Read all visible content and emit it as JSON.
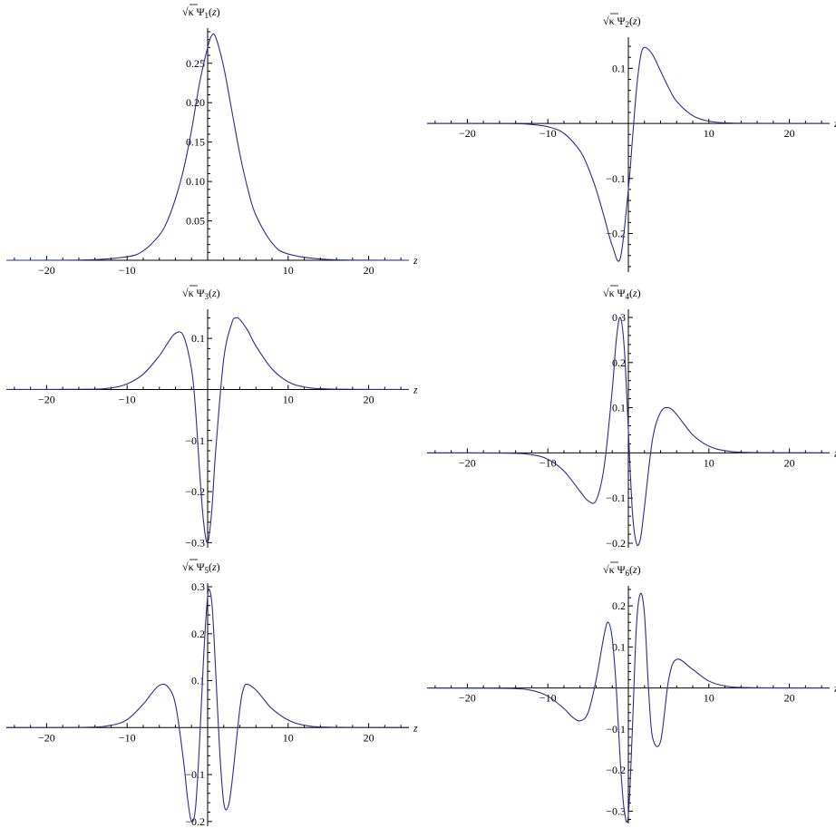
{
  "chart_data": [
    {
      "type": "line",
      "title": "",
      "ylabel": "√κ Ψ1(z)",
      "xlabel": "z",
      "xlim": [
        -25,
        25
      ],
      "ylim": [
        0,
        0.29
      ],
      "x_ticks": [
        -20,
        -10,
        10,
        20
      ],
      "y_ticks": [
        0.05,
        0.1,
        0.15,
        0.2,
        0.25
      ],
      "x_tick_labels": [
        "−20",
        "−10",
        "10",
        "20"
      ],
      "y_tick_labels": [
        "0.05",
        "0.10",
        "0.15",
        "0.20",
        "0.25"
      ],
      "series": [
        {
          "x": [
            -25,
            -15,
            -10,
            -8,
            -6,
            -5,
            -4,
            -3,
            -2,
            -1,
            0,
            0.5,
            1,
            2,
            3,
            4,
            5,
            6,
            8,
            10,
            15,
            25
          ],
          "y": [
            0.0,
            0.0005,
            0.0045,
            0.012,
            0.032,
            0.05,
            0.078,
            0.115,
            0.165,
            0.225,
            0.27,
            0.285,
            0.283,
            0.245,
            0.19,
            0.135,
            0.09,
            0.057,
            0.022,
            0.008,
            0.001,
            0.0
          ]
        }
      ]
    },
    {
      "type": "line",
      "title": "",
      "ylabel": "√κ Ψ2(z)",
      "xlabel": "z",
      "xlim": [
        -25,
        25
      ],
      "ylim": [
        -0.27,
        0.15
      ],
      "x_ticks": [
        -20,
        -10,
        10,
        20
      ],
      "y_ticks": [
        -0.2,
        -0.1,
        0.1
      ],
      "x_tick_labels": [
        "−20",
        "−10",
        "10",
        "20"
      ],
      "y_tick_labels": [
        "−0.2",
        "−0.1",
        "0.1"
      ],
      "series": [
        {
          "x": [
            -25,
            -15,
            -12,
            -10,
            -8,
            -6,
            -5,
            -4,
            -3,
            -2,
            -1,
            0,
            0.5,
            1,
            1.5,
            2,
            3,
            4,
            5,
            6,
            8,
            10,
            12,
            15,
            25
          ],
          "y": [
            0.0,
            -0.0003,
            -0.002,
            -0.006,
            -0.018,
            -0.05,
            -0.08,
            -0.12,
            -0.17,
            -0.222,
            -0.245,
            -0.12,
            -0.03,
            0.06,
            0.12,
            0.138,
            0.125,
            0.095,
            0.065,
            0.04,
            0.014,
            0.004,
            0.001,
            0.0002,
            0.0
          ]
        }
      ]
    },
    {
      "type": "line",
      "title": "",
      "ylabel": "√κ Ψ3(z)",
      "xlabel": "z",
      "xlim": [
        -25,
        25
      ],
      "ylim": [
        -0.31,
        0.15
      ],
      "x_ticks": [
        -20,
        -10,
        10,
        20
      ],
      "y_ticks": [
        -0.3,
        -0.2,
        -0.1,
        0.1
      ],
      "x_tick_labels": [
        "−20",
        "−10",
        "10",
        "20"
      ],
      "y_tick_labels": [
        "−0.3",
        "−0.2",
        "−0.1",
        "0.1"
      ],
      "series": [
        {
          "x": [
            -25,
            -15,
            -12,
            -10,
            -8,
            -6,
            -5,
            -4,
            -3,
            -2,
            -1.5,
            -1,
            -0.5,
            0,
            0.5,
            1,
            2,
            3,
            3.5,
            4,
            5,
            6,
            8,
            10,
            12,
            15,
            25
          ],
          "y": [
            0.0,
            0.0004,
            0.003,
            0.011,
            0.03,
            0.066,
            0.09,
            0.11,
            0.105,
            0.04,
            -0.04,
            -0.16,
            -0.26,
            -0.3,
            -0.24,
            -0.12,
            0.06,
            0.13,
            0.14,
            0.137,
            0.115,
            0.085,
            0.04,
            0.015,
            0.005,
            0.001,
            0.0
          ]
        }
      ]
    },
    {
      "type": "line",
      "title": "",
      "ylabel": "√κ Ψ4(z)",
      "xlabel": "z",
      "xlim": [
        -25,
        25
      ],
      "ylim": [
        -0.21,
        0.31
      ],
      "x_ticks": [
        -20,
        -10,
        10,
        20
      ],
      "y_ticks": [
        -0.2,
        -0.1,
        0.1,
        0.2,
        0.3
      ],
      "x_tick_labels": [
        "−20",
        "−10",
        "10",
        "20"
      ],
      "y_tick_labels": [
        "−0.2",
        "−0.1",
        "0.1",
        "0.2",
        "0.3"
      ],
      "series": [
        {
          "x": [
            -25,
            -15,
            -12,
            -10,
            -8,
            -6,
            -5,
            -4,
            -3,
            -2,
            -1.5,
            -1,
            -0.5,
            0,
            0.5,
            1,
            1.5,
            2,
            3,
            4,
            5,
            6,
            8,
            10,
            12,
            15,
            25
          ],
          "y": [
            0.0,
            -0.0006,
            -0.004,
            -0.014,
            -0.04,
            -0.085,
            -0.106,
            -0.105,
            -0.03,
            0.14,
            0.25,
            0.3,
            0.23,
            0.05,
            -0.13,
            -0.2,
            -0.19,
            -0.12,
            0.03,
            0.09,
            0.1,
            0.085,
            0.04,
            0.015,
            0.005,
            0.001,
            0.0
          ]
        }
      ]
    },
    {
      "type": "line",
      "title": "",
      "ylabel": "√κ Ψ5(z)",
      "xlabel": "z",
      "xlim": [
        -25,
        25
      ],
      "ylim": [
        -0.21,
        0.3
      ],
      "x_ticks": [
        -20,
        -10,
        10,
        20
      ],
      "y_ticks": [
        -0.2,
        -0.1,
        0.1,
        0.2,
        0.3
      ],
      "x_tick_labels": [
        "−20",
        "−10",
        "10",
        "20"
      ],
      "y_tick_labels": [
        "−0.2",
        "−0.1",
        "0.1",
        "0.2",
        "0.3"
      ],
      "series": [
        {
          "x": [
            -25,
            -15,
            -12,
            -10,
            -8,
            -7,
            -6,
            -5,
            -4,
            -3,
            -2.5,
            -2,
            -1.5,
            -1,
            -0.5,
            0,
            0.3,
            0.6,
            1,
            1.5,
            2,
            2.5,
            3,
            4,
            4.5,
            5,
            6,
            7,
            8,
            10,
            12,
            15,
            25
          ],
          "y": [
            0.0,
            0.0008,
            0.005,
            0.017,
            0.05,
            0.072,
            0.09,
            0.088,
            0.05,
            -0.07,
            -0.15,
            -0.2,
            -0.17,
            -0.03,
            0.15,
            0.28,
            0.29,
            0.25,
            0.12,
            -0.05,
            -0.16,
            -0.17,
            -0.12,
            0.04,
            0.085,
            0.092,
            0.08,
            0.06,
            0.04,
            0.016,
            0.005,
            0.001,
            0.0
          ]
        }
      ]
    },
    {
      "type": "line",
      "title": "",
      "ylabel": "√κ Ψ6(z)",
      "xlabel": "z",
      "xlim": [
        -25,
        25
      ],
      "ylim": [
        -0.33,
        0.24
      ],
      "x_ticks": [
        -20,
        -10,
        10,
        20
      ],
      "y_ticks": [
        -0.3,
        -0.2,
        -0.1,
        0.1,
        0.2
      ],
      "x_tick_labels": [
        "−20",
        "−10",
        "10",
        "20"
      ],
      "y_tick_labels": [
        "−0.3",
        "−0.2",
        "−0.1",
        "0.1",
        "0.2"
      ],
      "series": [
        {
          "x": [
            -25,
            -15,
            -12,
            -10,
            -8,
            -7,
            -6,
            -5,
            -4,
            -3,
            -2.5,
            -2,
            -1.5,
            -1,
            -0.5,
            0,
            0.5,
            1,
            1.5,
            2,
            2.5,
            3,
            4,
            5,
            6,
            8,
            10,
            12,
            15,
            25
          ],
          "y": [
            0.0,
            -0.001,
            -0.006,
            -0.02,
            -0.05,
            -0.07,
            -0.08,
            -0.06,
            0.02,
            0.13,
            0.16,
            0.12,
            0.0,
            -0.18,
            -0.3,
            -0.31,
            -0.1,
            0.15,
            0.23,
            0.18,
            0.0,
            -0.12,
            -0.13,
            0.02,
            0.07,
            0.045,
            0.017,
            0.005,
            0.001,
            0.0
          ]
        }
      ]
    }
  ]
}
